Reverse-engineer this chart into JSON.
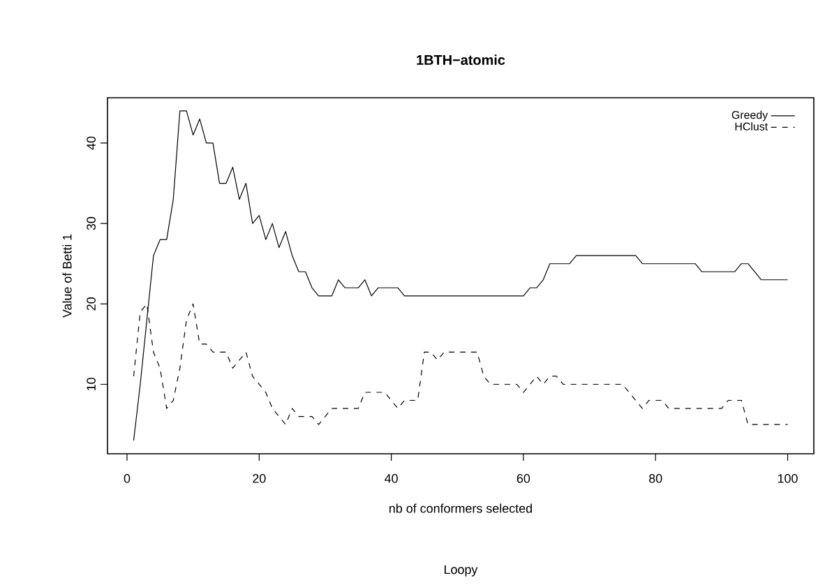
{
  "chart_data": {
    "type": "line",
    "title": "1BTH−atomic",
    "xlabel": "nb of conformers selected",
    "ylabel": "Value of Betti 1",
    "annotations": [
      "Loopy"
    ],
    "x": [
      1,
      2,
      3,
      4,
      5,
      6,
      7,
      8,
      9,
      10,
      11,
      12,
      13,
      14,
      15,
      16,
      17,
      18,
      19,
      20,
      21,
      22,
      23,
      24,
      25,
      26,
      27,
      28,
      29,
      30,
      31,
      32,
      33,
      34,
      35,
      36,
      37,
      38,
      39,
      40,
      41,
      42,
      43,
      44,
      45,
      46,
      47,
      48,
      49,
      50,
      51,
      52,
      53,
      54,
      55,
      56,
      57,
      58,
      59,
      60,
      61,
      62,
      63,
      64,
      65,
      66,
      67,
      68,
      69,
      70,
      71,
      72,
      73,
      74,
      75,
      76,
      77,
      78,
      79,
      80,
      81,
      82,
      83,
      84,
      85,
      86,
      87,
      88,
      89,
      90,
      91,
      92,
      93,
      94,
      95,
      96,
      97,
      98,
      99,
      100
    ],
    "series": [
      {
        "name": "Greedy",
        "color": "#000000",
        "line_style": "solid",
        "values": [
          3,
          10,
          18,
          26,
          28,
          28,
          33,
          44,
          44,
          41,
          43,
          40,
          40,
          35,
          35,
          37,
          33,
          35,
          30,
          31,
          28,
          30,
          27,
          29,
          26,
          24,
          24,
          22,
          21,
          21,
          21,
          23,
          22,
          22,
          22,
          23,
          21,
          22,
          22,
          22,
          22,
          21,
          21,
          21,
          21,
          21,
          21,
          21,
          21,
          21,
          21,
          21,
          21,
          21,
          21,
          21,
          21,
          21,
          21,
          21,
          22,
          22,
          23,
          25,
          25,
          25,
          25,
          26,
          26,
          26,
          26,
          26,
          26,
          26,
          26,
          26,
          26,
          25,
          25,
          25,
          25,
          25,
          25,
          25,
          25,
          25,
          24,
          24,
          24,
          24,
          24,
          24,
          25,
          25,
          24,
          23,
          23,
          23,
          23,
          23
        ]
      },
      {
        "name": "HClust",
        "color": "#000000",
        "line_style": "dashed",
        "values": [
          11,
          19,
          20,
          14,
          12,
          7,
          8,
          12,
          18,
          20,
          15,
          15,
          14,
          14,
          14,
          12,
          13,
          14,
          11,
          10,
          9,
          7,
          6,
          5,
          7,
          6,
          6,
          6,
          5,
          6,
          7,
          7,
          7,
          7,
          7,
          9,
          9,
          9,
          9,
          8,
          7,
          8,
          8,
          8,
          14,
          14,
          13,
          14,
          14,
          14,
          14,
          14,
          14,
          11,
          10,
          10,
          10,
          10,
          10,
          9,
          10,
          11,
          10,
          11,
          11,
          10,
          10,
          10,
          10,
          10,
          10,
          10,
          10,
          10,
          10,
          9,
          8,
          7,
          8,
          8,
          8,
          7,
          7,
          7,
          7,
          7,
          7,
          7,
          7,
          7,
          8,
          8,
          8,
          5,
          5,
          5,
          5,
          5,
          5,
          5
        ]
      }
    ],
    "xlim": [
      -2.96,
      103.96
    ],
    "ylim": [
      1.36,
      45.64
    ],
    "xticks": [
      0,
      20,
      40,
      60,
      80,
      100
    ],
    "yticks": [
      10,
      20,
      30,
      40
    ],
    "legend": "top right",
    "grid": false
  }
}
